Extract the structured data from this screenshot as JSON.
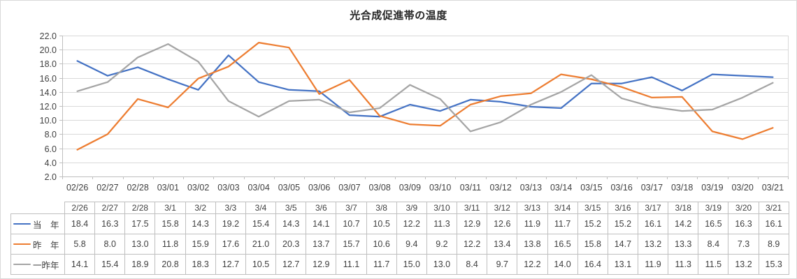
{
  "chart_data": {
    "type": "line",
    "title": "光合成促進帯の温度",
    "x": [
      "02/26",
      "02/27",
      "02/28",
      "03/01",
      "03/02",
      "03/03",
      "03/04",
      "03/05",
      "03/06",
      "03/07",
      "03/08",
      "03/09",
      "03/10",
      "03/11",
      "03/12",
      "03/13",
      "03/14",
      "03/15",
      "03/16",
      "03/17",
      "03/18",
      "03/19",
      "03/20",
      "03/21"
    ],
    "table_columns": [
      "2/26",
      "2/27",
      "2/28",
      "3/1",
      "3/2",
      "3/3",
      "3/4",
      "3/5",
      "3/6",
      "3/7",
      "3/8",
      "3/9",
      "3/10",
      "3/11",
      "3/12",
      "3/13",
      "3/14",
      "3/15",
      "3/16",
      "3/17",
      "3/18",
      "3/19",
      "3/20",
      "3/21"
    ],
    "series": [
      {
        "name": "当　年",
        "color": "#4472C4",
        "values": [
          18.4,
          16.3,
          17.5,
          15.8,
          14.3,
          19.2,
          15.4,
          14.3,
          14.1,
          10.7,
          10.5,
          12.2,
          11.3,
          12.9,
          12.6,
          11.9,
          11.7,
          15.2,
          15.2,
          16.1,
          14.2,
          16.5,
          16.3,
          16.1
        ]
      },
      {
        "name": "昨　年",
        "color": "#ED7D31",
        "values": [
          5.8,
          8.0,
          13.0,
          11.8,
          15.9,
          17.6,
          21.0,
          20.3,
          13.7,
          15.7,
          10.6,
          9.4,
          9.2,
          12.2,
          13.4,
          13.8,
          16.5,
          15.8,
          14.7,
          13.2,
          13.3,
          8.4,
          7.3,
          8.9
        ]
      },
      {
        "name": "一昨年",
        "color": "#A5A5A5",
        "values": [
          14.1,
          15.4,
          18.9,
          20.8,
          18.3,
          12.7,
          10.5,
          12.7,
          12.9,
          11.1,
          11.7,
          15.0,
          13.0,
          8.4,
          9.7,
          12.2,
          14.0,
          16.4,
          13.1,
          11.9,
          11.3,
          11.5,
          13.2,
          15.3
        ]
      }
    ],
    "yticks": [
      "22.0",
      "20.0",
      "18.0",
      "16.0",
      "14.0",
      "12.0",
      "10.0",
      "8.0",
      "6.0",
      "4.0",
      "2.0"
    ],
    "ylim": [
      2.0,
      22.0
    ],
    "ytick_step": 2.0,
    "xlabel": "",
    "ylabel": "",
    "grid": "horizontal",
    "legend_position": "data-table-left-keys",
    "value_decimals": 1
  },
  "colors": {
    "grid_line": "#d9d9d9",
    "axis_line": "#bfbfbf",
    "plot_right_border": "#d9d9d9",
    "table_border": "#bfbfbf",
    "text": "#404040",
    "title_text": "#262626"
  }
}
